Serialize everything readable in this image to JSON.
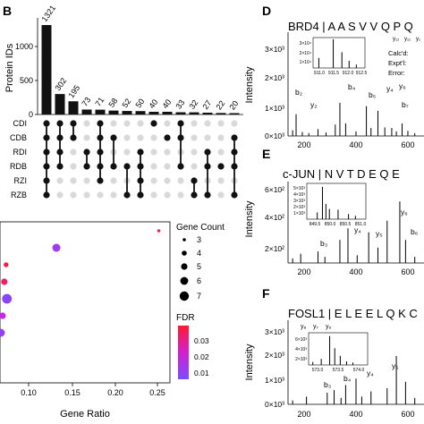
{
  "panels": {
    "B": {
      "letter": "B",
      "ylabel": "Protein IDs",
      "yticks": [
        "0",
        "500",
        "1000"
      ],
      "set_labels": [
        "CDI",
        "CDB",
        "RDI",
        "RDB",
        "RZI",
        "RZB"
      ]
    },
    "C": {
      "xlabel": "Gene Ratio",
      "xticks": [
        "0.10",
        "0.15",
        "0.20",
        "0.25"
      ],
      "size_legend": {
        "title": "Gene Count",
        "labels": [
          "3",
          "4",
          "5",
          "6",
          "7"
        ]
      },
      "color_legend": {
        "title": "FDR",
        "labels": [
          "0.03",
          "0.02",
          "0.01"
        ]
      }
    },
    "D": {
      "letter": "D",
      "title": "BRD4 | A A S V V Q P Q",
      "yaxis": "Intensity",
      "yticks": [
        "3×10³",
        "2×10³",
        "1×10³",
        "0×10³"
      ],
      "xticks": [
        "200",
        "400",
        "600"
      ],
      "inset_yticks": [
        "3×10⁴",
        "2×10⁴",
        "1×10⁴"
      ],
      "inset_xticks": [
        "911.0",
        "911.5",
        "912.0",
        "912.5"
      ],
      "calc_lines": [
        "Calc'd:",
        "Expt'l:",
        "Error:"
      ],
      "ion_labels": [
        "b₂",
        "y₂",
        "b₄",
        "y₄",
        "b₅",
        "y₆",
        "b₇",
        "y₁₂",
        "y₁₁",
        "y₁"
      ]
    },
    "E": {
      "letter": "E",
      "title": "c-JUN | N V T D E Q E",
      "yaxis": "Intensity",
      "yticks": [
        "6×10²",
        "4×10²",
        "2×10²"
      ],
      "xticks": [
        "200",
        "400",
        "600"
      ],
      "inset_yticks": [
        "5×10³",
        "4×10³",
        "3×10³",
        "2×10³",
        "1×10³"
      ],
      "inset_xticks": [
        "849.5",
        "850.0",
        "850.5",
        "851.0"
      ],
      "ion_labels": [
        "b₃",
        "y₄",
        "y₅",
        "y₆",
        "b₆"
      ]
    },
    "F": {
      "letter": "F",
      "title": "FOSL1 | E L E E L Q K C",
      "yaxis": "Intensity",
      "yticks": [
        "3×10³",
        "2×10³",
        "1×10³",
        "0×10³"
      ],
      "xticks": [
        "200",
        "400",
        "600"
      ],
      "inset_yticks": [
        "6×10³",
        "4×10³",
        "2×10³"
      ],
      "inset_xticks": [
        "573.0",
        "573.5",
        "574.0"
      ],
      "ion_labels": [
        "y₈",
        "y₇",
        "y₆",
        "b₃",
        "b₄",
        "y₄",
        "y₅"
      ]
    }
  },
  "chart_data": [
    {
      "type": "bar",
      "title": "",
      "ylabel": "Protein IDs",
      "ylim": [
        0,
        1400
      ],
      "values": [
        1321,
        302,
        195,
        73,
        71,
        58,
        52,
        50,
        40,
        40,
        33,
        32,
        27,
        22,
        20
      ],
      "value_labels": [
        "1321",
        "302",
        "195",
        "73",
        "71",
        "58",
        "52",
        "50",
        "40",
        "40",
        "33",
        "32",
        "27",
        "22",
        "20"
      ],
      "matrix_sets": [
        "CDI",
        "CDB",
        "RDI",
        "RDB",
        "RZI",
        "RZB"
      ],
      "intersections": [
        [
          0,
          1,
          2,
          3,
          4,
          5
        ],
        [
          0,
          1,
          2,
          3
        ],
        [
          0,
          1
        ],
        [
          2,
          3
        ],
        [
          0,
          1,
          2,
          3,
          4
        ],
        [
          1,
          3
        ],
        [
          3,
          5
        ],
        [
          2,
          3,
          4,
          5
        ],
        [
          0
        ],
        [
          1
        ],
        [
          0,
          1,
          3
        ],
        [
          4,
          5
        ],
        [
          2,
          3,
          5
        ],
        [
          3
        ],
        [
          1,
          2,
          3,
          5
        ]
      ]
    },
    {
      "type": "scatter",
      "xlabel": "Gene Ratio",
      "xlim": [
        0.055,
        0.26
      ],
      "points": [
        {
          "x": 0.25,
          "y": 9,
          "count": 3,
          "fdr": 0.03
        },
        {
          "x": 0.132,
          "y": 8,
          "count": 6,
          "fdr": 0.012
        },
        {
          "x": 0.074,
          "y": 7,
          "count": 4,
          "fdr": 0.034
        },
        {
          "x": 0.072,
          "y": 6,
          "count": 5,
          "fdr": 0.032
        },
        {
          "x": 0.075,
          "y": 5,
          "count": 7,
          "fdr": 0.008
        },
        {
          "x": 0.07,
          "y": 4,
          "count": 5,
          "fdr": 0.02
        },
        {
          "x": 0.068,
          "y": 3,
          "count": 6,
          "fdr": 0.01
        }
      ],
      "size_legend_values": [
        3,
        4,
        5,
        6,
        7
      ],
      "color_range": [
        0.005,
        0.036
      ],
      "colors": {
        "high": "#ff1a2e",
        "mid": "#c926e6",
        "low": "#7a4dff"
      }
    }
  ],
  "spectra": {
    "D": {
      "main": [
        [
          190,
          0.1
        ],
        [
          205,
          0.38
        ],
        [
          232,
          0.07
        ],
        [
          260,
          0.05
        ],
        [
          300,
          0.12
        ],
        [
          335,
          0.06
        ],
        [
          375,
          0.2
        ],
        [
          395,
          0.58
        ],
        [
          420,
          0.22
        ],
        [
          465,
          0.08
        ],
        [
          510,
          0.52
        ],
        [
          530,
          0.14
        ],
        [
          560,
          0.44
        ],
        [
          590,
          0.15
        ],
        [
          620,
          0.14
        ],
        [
          640,
          0.08
        ],
        [
          665,
          0.22
        ],
        [
          690,
          0.09
        ],
        [
          720,
          0.05
        ]
      ],
      "inset": [
        [
          911.0,
          0.35
        ],
        [
          911.5,
          1.0
        ],
        [
          911.8,
          0.55
        ],
        [
          912.05,
          0.25
        ],
        [
          912.3,
          0.12
        ]
      ]
    },
    "E": {
      "main": [
        [
          190,
          0.06
        ],
        [
          225,
          0.12
        ],
        [
          300,
          0.15
        ],
        [
          330,
          0.08
        ],
        [
          395,
          0.3
        ],
        [
          430,
          0.45
        ],
        [
          470,
          0.1
        ],
        [
          520,
          0.4
        ],
        [
          560,
          0.2
        ],
        [
          600,
          0.55
        ],
        [
          655,
          0.8
        ],
        [
          680,
          0.3
        ],
        [
          720,
          0.08
        ]
      ],
      "inset": [
        [
          849.7,
          0.2
        ],
        [
          849.85,
          0.95
        ],
        [
          849.95,
          0.45
        ],
        [
          850.05,
          0.3
        ],
        [
          850.3,
          0.28
        ],
        [
          850.6,
          0.15
        ],
        [
          850.8,
          0.1
        ]
      ]
    },
    "F": {
      "main": [
        [
          190,
          0.06
        ],
        [
          250,
          0.12
        ],
        [
          340,
          0.18
        ],
        [
          370,
          0.22
        ],
        [
          400,
          0.1
        ],
        [
          420,
          0.3
        ],
        [
          465,
          0.4
        ],
        [
          490,
          0.12
        ],
        [
          530,
          0.2
        ],
        [
          600,
          0.25
        ],
        [
          640,
          0.75
        ],
        [
          680,
          0.35
        ],
        [
          720,
          0.1
        ]
      ],
      "inset": [
        [
          572.9,
          0.1
        ],
        [
          573.1,
          0.2
        ],
        [
          573.3,
          0.95
        ],
        [
          573.42,
          0.55
        ],
        [
          573.55,
          0.3
        ],
        [
          573.7,
          0.12
        ],
        [
          573.85,
          0.08
        ]
      ]
    }
  }
}
